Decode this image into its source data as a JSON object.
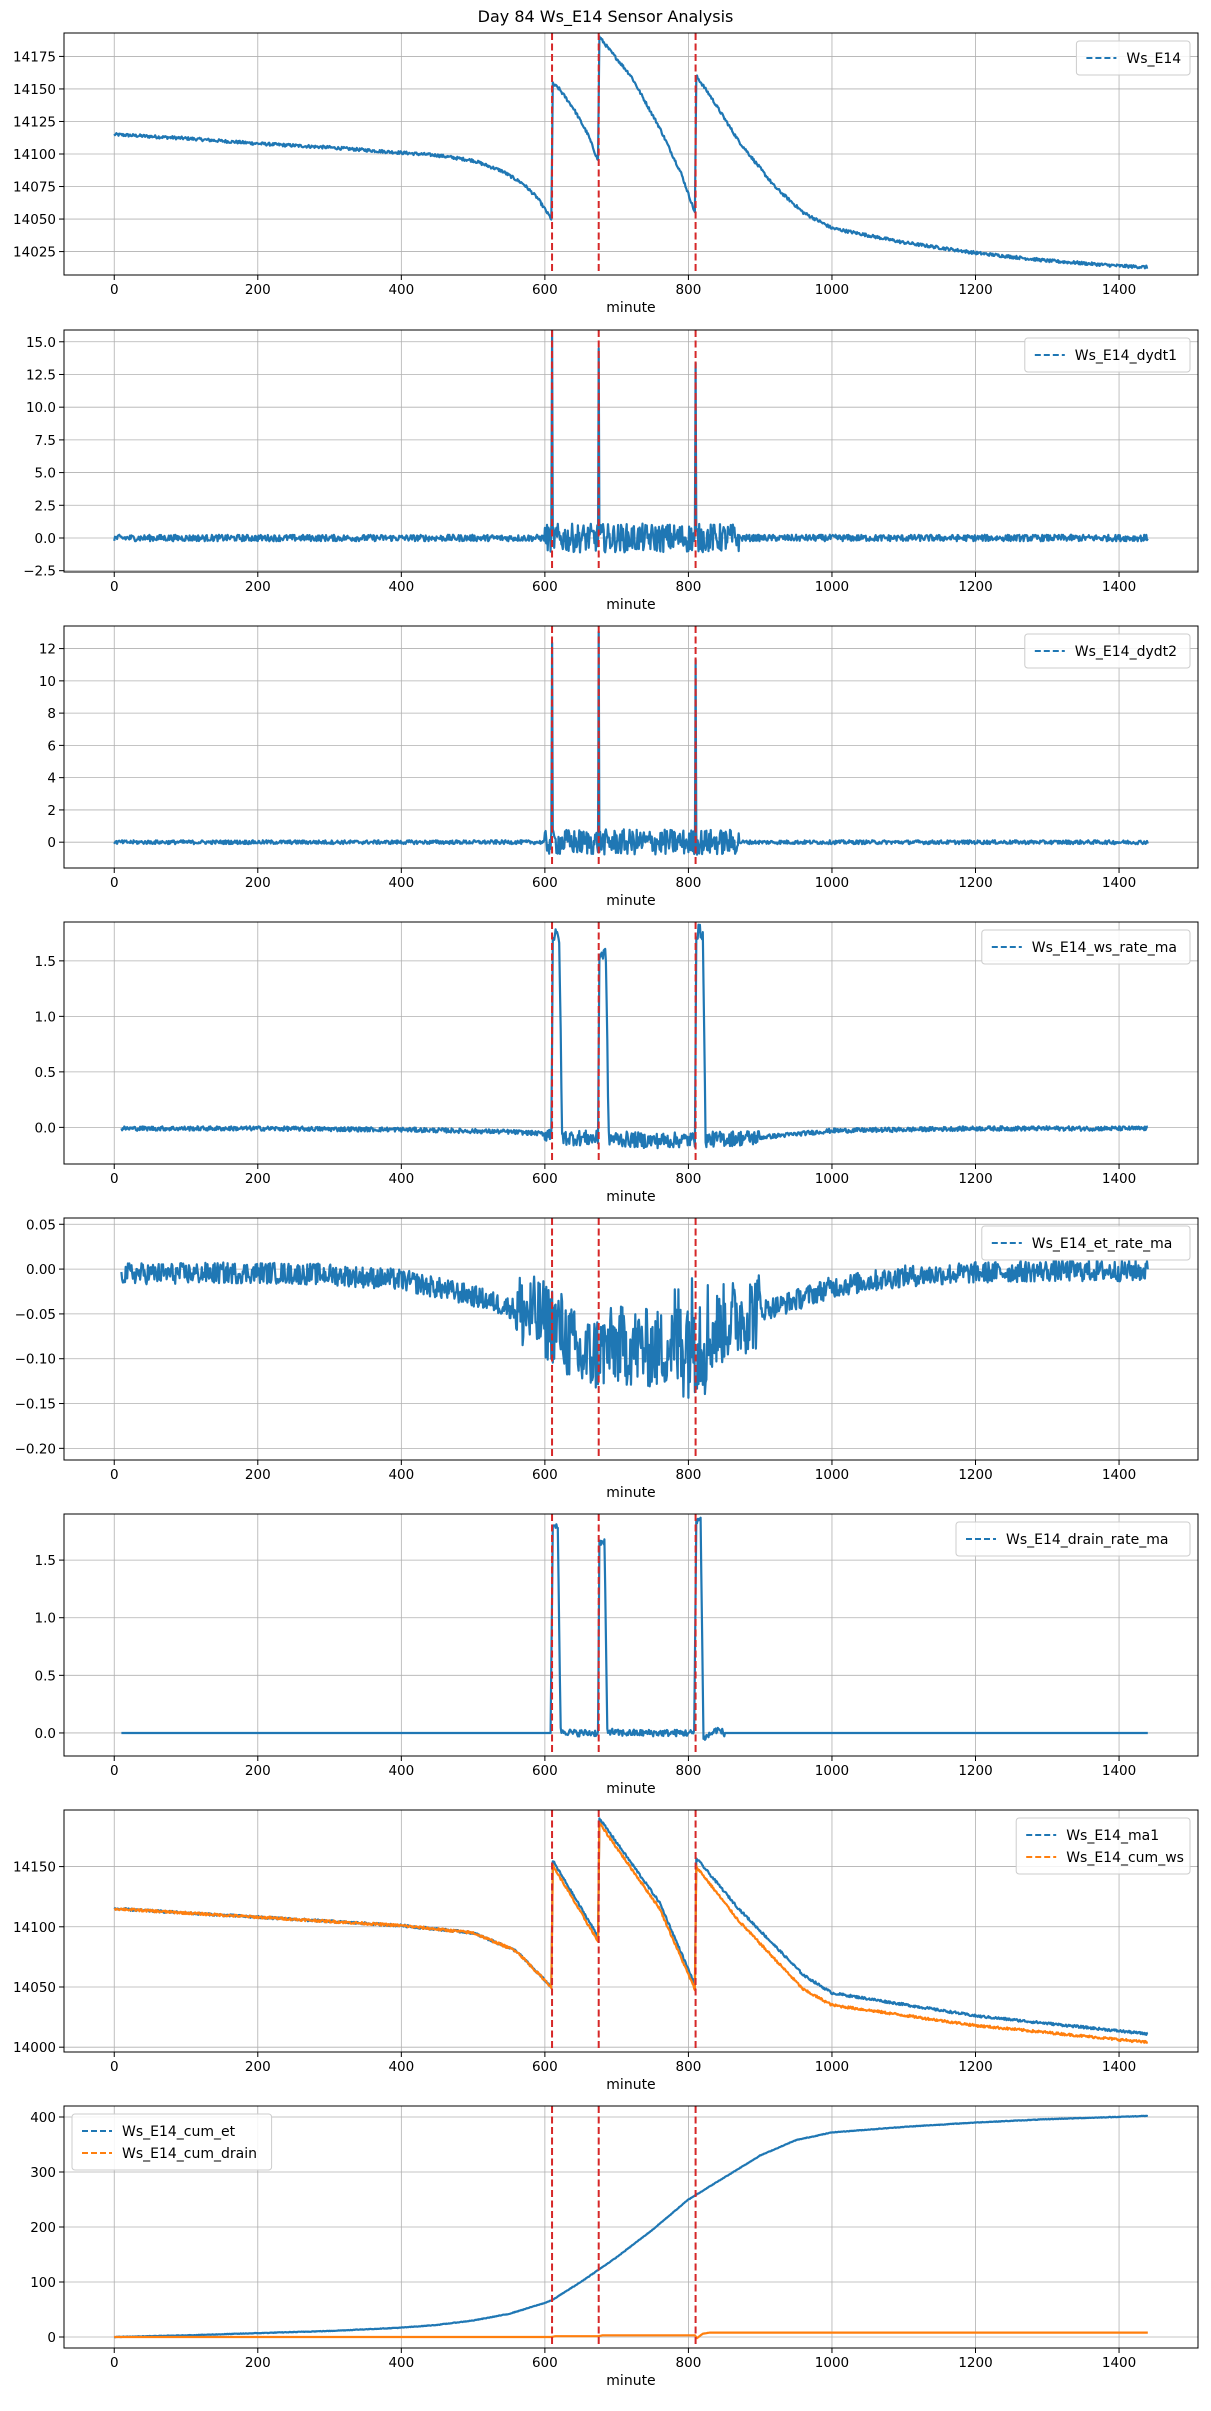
{
  "figure": {
    "title": "Day 84 Ws_E14 Sensor Analysis",
    "event_lines": [
      610,
      675,
      810
    ],
    "event_line_color": "#d62728",
    "colors": {
      "blue": "#1f77b4",
      "orange": "#ff7f0e",
      "grid": "#b0b0b0"
    }
  },
  "chart_data": [
    {
      "type": "line",
      "xlabel": "minute",
      "ylabel": "",
      "xlim": [
        -70,
        1510
      ],
      "ylim": [
        14007,
        14193
      ],
      "xticks": [
        0,
        200,
        400,
        600,
        800,
        1000,
        1200,
        1400
      ],
      "yticks": [
        14025,
        14050,
        14075,
        14100,
        14125,
        14150,
        14175
      ],
      "legend": "top-right",
      "series": [
        {
          "name": "Ws_E14",
          "color": "#1f77b4",
          "points": [
            [
              0,
              14115
            ],
            [
              100,
              14112
            ],
            [
              200,
              14108
            ],
            [
              300,
              14105
            ],
            [
              400,
              14101
            ],
            [
              450,
              14099
            ],
            [
              500,
              14095
            ],
            [
              540,
              14087
            ],
            [
              570,
              14077
            ],
            [
              590,
              14066
            ],
            [
              609,
              14050
            ],
            [
              611,
              14154
            ],
            [
              620,
              14150
            ],
            [
              640,
              14135
            ],
            [
              660,
              14115
            ],
            [
              674,
              14095
            ],
            [
              676,
              14190
            ],
            [
              690,
              14180
            ],
            [
              720,
              14160
            ],
            [
              760,
              14120
            ],
            [
              790,
              14085
            ],
            [
              809,
              14055
            ],
            [
              811,
              14160
            ],
            [
              830,
              14145
            ],
            [
              870,
              14110
            ],
            [
              920,
              14075
            ],
            [
              960,
              14055
            ],
            [
              1000,
              14043
            ],
            [
              1100,
              14032
            ],
            [
              1200,
              14024
            ],
            [
              1300,
              14018
            ],
            [
              1400,
              14014
            ],
            [
              1440,
              14013
            ]
          ],
          "noise": 1.2
        }
      ]
    },
    {
      "type": "line",
      "xlabel": "minute",
      "ylabel": "",
      "xlim": [
        -70,
        1510
      ],
      "ylim": [
        -2.6,
        15.9
      ],
      "xticks": [
        0,
        200,
        400,
        600,
        800,
        1000,
        1200,
        1400
      ],
      "yticks": [
        -2.5,
        0.0,
        2.5,
        5.0,
        7.5,
        10.0,
        12.5,
        15.0
      ],
      "ytick_labels": [
        "−2.5",
        "0.0",
        "2.5",
        "5.0",
        "7.5",
        "10.0",
        "12.5",
        "15.0"
      ],
      "legend": "top-right",
      "series": [
        {
          "name": "Ws_E14_dydt1",
          "color": "#1f77b4",
          "points": [
            [
              0,
              0
            ],
            [
              609,
              0
            ],
            [
              610,
              15.2
            ],
            [
              611,
              0
            ],
            [
              674,
              0
            ],
            [
              675,
              14.5
            ],
            [
              676,
              0
            ],
            [
              809,
              0
            ],
            [
              810,
              12.8
            ],
            [
              811,
              0
            ],
            [
              1440,
              0
            ]
          ],
          "noise": 0.25,
          "noise_zones": [
            [
              600,
              870,
              1.1
            ]
          ]
        }
      ]
    },
    {
      "type": "line",
      "xlabel": "minute",
      "ylabel": "",
      "xlim": [
        -70,
        1510
      ],
      "ylim": [
        -1.6,
        13.4
      ],
      "xticks": [
        0,
        200,
        400,
        600,
        800,
        1000,
        1200,
        1400
      ],
      "yticks": [
        0,
        2,
        4,
        6,
        8,
        10,
        12
      ],
      "legend": "top-right",
      "series": [
        {
          "name": "Ws_E14_dydt2",
          "color": "#1f77b4",
          "points": [
            [
              0,
              0
            ],
            [
              609,
              0
            ],
            [
              610,
              12.8
            ],
            [
              611,
              0
            ],
            [
              674,
              0
            ],
            [
              675,
              12.5
            ],
            [
              676,
              0
            ],
            [
              809,
              0
            ],
            [
              810,
              11.6
            ],
            [
              811,
              0
            ],
            [
              1440,
              0
            ]
          ],
          "noise": 0.12,
          "noise_zones": [
            [
              600,
              870,
              0.8
            ]
          ]
        }
      ]
    },
    {
      "type": "line",
      "xlabel": "minute",
      "ylabel": "",
      "xlim": [
        -70,
        1510
      ],
      "ylim": [
        -0.33,
        1.85
      ],
      "xticks": [
        0,
        200,
        400,
        600,
        800,
        1000,
        1200,
        1400
      ],
      "yticks": [
        0.0,
        0.5,
        1.0,
        1.5
      ],
      "ytick_labels": [
        "0.0",
        "0.5",
        "1.0",
        "1.5"
      ],
      "legend": "top-right",
      "series": [
        {
          "name": "Ws_E14_ws_rate_ma",
          "color": "#1f77b4",
          "points": [
            [
              10,
              -0.01
            ],
            [
              200,
              -0.01
            ],
            [
              400,
              -0.02
            ],
            [
              550,
              -0.04
            ],
            [
              609,
              -0.06
            ],
            [
              611,
              1.72
            ],
            [
              620,
              1.72
            ],
            [
              624,
              -0.09
            ],
            [
              674,
              -0.1
            ],
            [
              676,
              1.56
            ],
            [
              685,
              1.56
            ],
            [
              689,
              -0.1
            ],
            [
              750,
              -0.12
            ],
            [
              809,
              -0.11
            ],
            [
              811,
              1.76
            ],
            [
              820,
              1.76
            ],
            [
              824,
              -0.11
            ],
            [
              900,
              -0.09
            ],
            [
              1000,
              -0.03
            ],
            [
              1200,
              -0.01
            ],
            [
              1440,
              -0.01
            ]
          ],
          "noise": 0.02,
          "noise_zones": [
            [
              600,
              900,
              0.07
            ]
          ]
        }
      ]
    },
    {
      "type": "line",
      "xlabel": "minute",
      "ylabel": "",
      "xlim": [
        -70,
        1510
      ],
      "ylim": [
        -0.213,
        0.057
      ],
      "xticks": [
        0,
        200,
        400,
        600,
        800,
        1000,
        1200,
        1400
      ],
      "yticks": [
        -0.2,
        -0.15,
        -0.1,
        -0.05,
        0.0,
        0.05
      ],
      "ytick_labels": [
        "−0.20",
        "−0.15",
        "−0.10",
        "−0.05",
        "0.00",
        "0.05"
      ],
      "legend": "top-right",
      "series": [
        {
          "name": "Ws_E14_et_rate_ma",
          "color": "#1f77b4",
          "points": [
            [
              10,
              -0.005
            ],
            [
              100,
              -0.005
            ],
            [
              200,
              -0.004
            ],
            [
              300,
              -0.006
            ],
            [
              400,
              -0.012
            ],
            [
              500,
              -0.03
            ],
            [
              560,
              -0.045
            ],
            [
              609,
              -0.06
            ],
            [
              620,
              -0.065
            ],
            [
              650,
              -0.1
            ],
            [
              700,
              -0.085
            ],
            [
              760,
              -0.09
            ],
            [
              809,
              -0.07
            ],
            [
              830,
              -0.075
            ],
            [
              850,
              -0.06
            ],
            [
              880,
              -0.05
            ],
            [
              930,
              -0.04
            ],
            [
              1000,
              -0.02
            ],
            [
              1100,
              -0.008
            ],
            [
              1200,
              -0.004
            ],
            [
              1300,
              -0.002
            ],
            [
              1440,
              -0.002
            ]
          ],
          "noise": 0.012,
          "noise_zones": [
            [
              560,
              900,
              0.045
            ],
            [
              780,
              830,
              0.07
            ]
          ]
        }
      ]
    },
    {
      "type": "line",
      "xlabel": "minute",
      "ylabel": "",
      "xlim": [
        -70,
        1510
      ],
      "ylim": [
        -0.2,
        1.9
      ],
      "xticks": [
        0,
        200,
        400,
        600,
        800,
        1000,
        1200,
        1400
      ],
      "yticks": [
        0.0,
        0.5,
        1.0,
        1.5
      ],
      "ytick_labels": [
        "0.0",
        "0.5",
        "1.0",
        "1.5"
      ],
      "legend": "top-right",
      "series": [
        {
          "name": "Ws_E14_drain_rate_ma",
          "color": "#1f77b4",
          "points": [
            [
              10,
              0
            ],
            [
              608,
              0
            ],
            [
              611,
              1.8
            ],
            [
              618,
              1.8
            ],
            [
              622,
              0.02
            ],
            [
              640,
              0.0
            ],
            [
              674,
              0
            ],
            [
              676,
              1.65
            ],
            [
              683,
              1.65
            ],
            [
              687,
              0.02
            ],
            [
              700,
              0.0
            ],
            [
              808,
              0
            ],
            [
              811,
              1.85
            ],
            [
              817,
              1.85
            ],
            [
              821,
              -0.05
            ],
            [
              840,
              0.03
            ],
            [
              850,
              0
            ],
            [
              1440,
              0
            ]
          ],
          "noise": 0.0,
          "noise_zones": [
            [
              615,
              850,
              0.03
            ]
          ]
        }
      ]
    },
    {
      "type": "line",
      "xlabel": "minute",
      "ylabel": "",
      "xlim": [
        -70,
        1510
      ],
      "ylim": [
        13996,
        14197
      ],
      "xticks": [
        0,
        200,
        400,
        600,
        800,
        1000,
        1200,
        1400
      ],
      "yticks": [
        14000,
        14050,
        14100,
        14150
      ],
      "legend": "top-right",
      "series": [
        {
          "name": "Ws_E14_ma1",
          "color": "#1f77b4",
          "points": [
            [
              0,
              14115
            ],
            [
              200,
              14108
            ],
            [
              400,
              14101
            ],
            [
              500,
              14095
            ],
            [
              560,
              14080
            ],
            [
              609,
              14050
            ],
            [
              611,
              14155
            ],
            [
              674,
              14092
            ],
            [
              676,
              14190
            ],
            [
              760,
              14120
            ],
            [
              809,
              14052
            ],
            [
              811,
              14157
            ],
            [
              870,
              14115
            ],
            [
              960,
              14060
            ],
            [
              1000,
              14045
            ],
            [
              1200,
              14026
            ],
            [
              1440,
              14011
            ]
          ],
          "noise": 1.0
        },
        {
          "name": "Ws_E14_cum_ws",
          "color": "#ff7f0e",
          "points": [
            [
              0,
              14115
            ],
            [
              200,
              14108
            ],
            [
              400,
              14101
            ],
            [
              500,
              14095
            ],
            [
              560,
              14080
            ],
            [
              609,
              14050
            ],
            [
              611,
              14151
            ],
            [
              674,
              14088
            ],
            [
              676,
              14186
            ],
            [
              760,
              14115
            ],
            [
              809,
              14048
            ],
            [
              811,
              14150
            ],
            [
              870,
              14105
            ],
            [
              960,
              14048
            ],
            [
              1000,
              14035
            ],
            [
              1200,
              14018
            ],
            [
              1440,
              14004
            ]
          ],
          "noise": 1.0
        }
      ]
    },
    {
      "type": "line",
      "xlabel": "minute",
      "ylabel": "",
      "xlim": [
        -70,
        1510
      ],
      "ylim": [
        -20,
        420
      ],
      "xticks": [
        0,
        200,
        400,
        600,
        800,
        1000,
        1200,
        1400
      ],
      "yticks": [
        0,
        100,
        200,
        300,
        400
      ],
      "legend": "top-left",
      "series": [
        {
          "name": "Ws_E14_cum_et",
          "color": "#1f77b4",
          "points": [
            [
              0,
              0
            ],
            [
              100,
              3
            ],
            [
              200,
              7
            ],
            [
              300,
              11
            ],
            [
              400,
              17
            ],
            [
              450,
              22
            ],
            [
              500,
              30
            ],
            [
              550,
              42
            ],
            [
              600,
              62
            ],
            [
              610,
              67
            ],
            [
              650,
              100
            ],
            [
              700,
              145
            ],
            [
              750,
              195
            ],
            [
              800,
              250
            ],
            [
              850,
              290
            ],
            [
              900,
              330
            ],
            [
              950,
              358
            ],
            [
              1000,
              372
            ],
            [
              1100,
              382
            ],
            [
              1200,
              390
            ],
            [
              1300,
              396
            ],
            [
              1440,
              402
            ]
          ],
          "noise": 0.5
        },
        {
          "name": "Ws_E14_cum_drain",
          "color": "#ff7f0e",
          "points": [
            [
              0,
              0
            ],
            [
              609,
              0
            ],
            [
              615,
              1.5
            ],
            [
              675,
              1.5
            ],
            [
              680,
              3
            ],
            [
              809,
              3
            ],
            [
              812,
              -2
            ],
            [
              820,
              6
            ],
            [
              830,
              8
            ],
            [
              1440,
              8
            ]
          ],
          "noise": 0.0
        }
      ]
    }
  ]
}
